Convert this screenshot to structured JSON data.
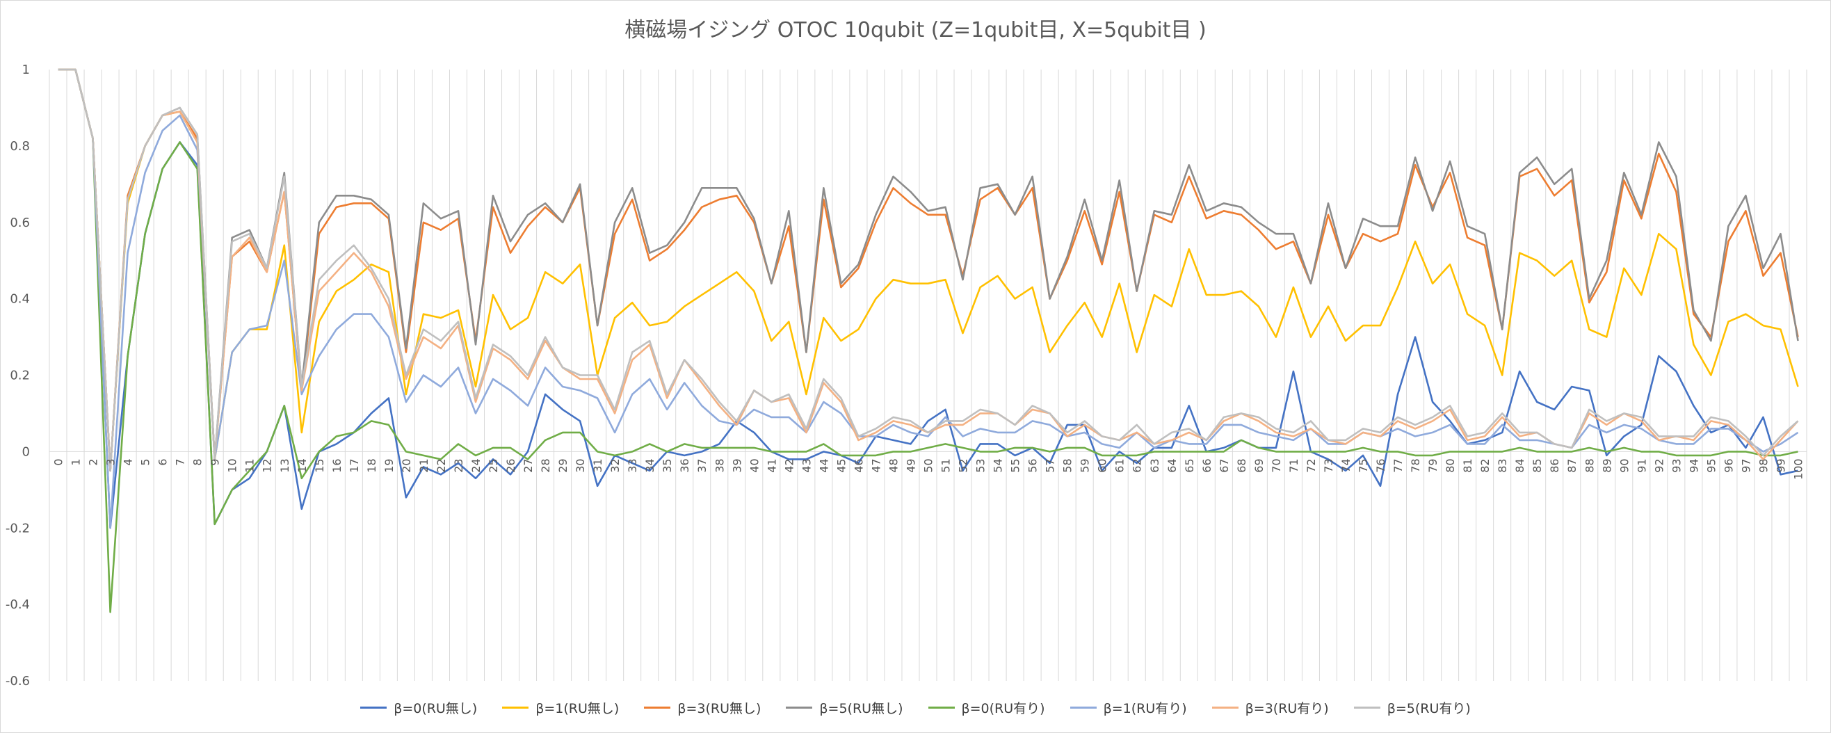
{
  "chart_data": {
    "type": "line",
    "title": "横磁場イジング OTOC 10qubit (Z=1qubit目, X=5qubit目 )",
    "xlabel": "",
    "ylabel": "",
    "ylim": [
      -0.6,
      1
    ],
    "yticks": [
      1,
      0.8,
      0.6,
      0.4,
      0.2,
      0,
      -0.2,
      -0.4,
      -0.6
    ],
    "x": [
      0,
      1,
      2,
      3,
      4,
      5,
      6,
      7,
      8,
      9,
      10,
      11,
      12,
      13,
      14,
      15,
      16,
      17,
      18,
      19,
      20,
      21,
      22,
      23,
      24,
      25,
      26,
      27,
      28,
      29,
      30,
      31,
      32,
      33,
      34,
      35,
      36,
      37,
      38,
      39,
      40,
      41,
      42,
      43,
      44,
      45,
      46,
      47,
      48,
      49,
      50,
      51,
      52,
      53,
      54,
      55,
      56,
      57,
      58,
      59,
      60,
      61,
      62,
      63,
      64,
      65,
      66,
      67,
      68,
      69,
      70,
      71,
      72,
      73,
      74,
      75,
      76,
      77,
      78,
      79,
      80,
      81,
      82,
      83,
      84,
      85,
      86,
      87,
      88,
      89,
      90,
      91,
      92,
      93,
      94,
      95,
      96,
      97,
      98,
      99,
      100
    ],
    "grid": "vertical",
    "legend_position": "bottom",
    "series": [
      {
        "name": "β=0(RU無し)",
        "color": "#4472c4",
        "values": [
          1,
          1,
          0.82,
          -0.2,
          0.25,
          0.57,
          0.74,
          0.81,
          0.75,
          -0.19,
          -0.1,
          -0.07,
          0,
          0.12,
          -0.15,
          0,
          0.02,
          0.05,
          0.1,
          0.14,
          -0.12,
          -0.04,
          -0.06,
          -0.03,
          -0.07,
          -0.02,
          -0.06,
          0,
          0.15,
          0.11,
          0.08,
          -0.09,
          -0.01,
          -0.03,
          -0.05,
          0,
          -0.01,
          0,
          0.02,
          0.08,
          0.05,
          0,
          -0.02,
          -0.02,
          0,
          -0.01,
          -0.03,
          0.04,
          0.03,
          0.02,
          0.08,
          0.11,
          -0.05,
          0.02,
          0.02,
          -0.01,
          0.01,
          -0.03,
          0.07,
          0.07,
          -0.05,
          0,
          -0.03,
          0.01,
          0.01,
          0.12,
          0,
          0.01,
          0.03,
          0.01,
          0.01,
          0.21,
          0,
          -0.02,
          -0.05,
          -0.01,
          -0.09,
          0.15,
          0.3,
          0.13,
          0.08,
          0.02,
          0.03,
          0.05,
          0.21,
          0.13,
          0.11,
          0.17,
          0.16,
          -0.01,
          0.04,
          0.07,
          0.25,
          0.21,
          0.12,
          0.05,
          0.07,
          0.01,
          0.09,
          -0.06,
          -0.05
        ]
      },
      {
        "name": "β=1(RU無し)",
        "color": "#ffc000",
        "values": [
          1,
          1,
          0.82,
          -0.05,
          0.65,
          0.8,
          0.88,
          0.89,
          0.81,
          -0.02,
          0.26,
          0.32,
          0.32,
          0.54,
          0.05,
          0.34,
          0.42,
          0.45,
          0.49,
          0.47,
          0.15,
          0.36,
          0.35,
          0.37,
          0.17,
          0.41,
          0.32,
          0.35,
          0.47,
          0.44,
          0.49,
          0.2,
          0.35,
          0.39,
          0.33,
          0.34,
          0.38,
          0.41,
          0.44,
          0.47,
          0.42,
          0.29,
          0.34,
          0.15,
          0.35,
          0.29,
          0.32,
          0.4,
          0.45,
          0.44,
          0.44,
          0.45,
          0.31,
          0.43,
          0.46,
          0.4,
          0.43,
          0.26,
          0.33,
          0.39,
          0.3,
          0.44,
          0.26,
          0.41,
          0.38,
          0.53,
          0.41,
          0.41,
          0.42,
          0.38,
          0.3,
          0.43,
          0.3,
          0.38,
          0.29,
          0.33,
          0.33,
          0.43,
          0.55,
          0.44,
          0.49,
          0.36,
          0.33,
          0.2,
          0.52,
          0.5,
          0.46,
          0.5,
          0.32,
          0.3,
          0.48,
          0.41,
          0.57,
          0.53,
          0.28,
          0.2,
          0.34,
          0.36,
          0.33,
          0.32,
          0.17
        ]
      },
      {
        "name": "β=3(RU無し)",
        "color": "#ed7d31",
        "values": [
          1,
          1,
          0.82,
          -0.05,
          0.67,
          0.8,
          0.88,
          0.89,
          0.82,
          -0.02,
          0.51,
          0.55,
          0.47,
          0.68,
          0.16,
          0.57,
          0.64,
          0.65,
          0.65,
          0.61,
          0.26,
          0.6,
          0.58,
          0.61,
          0.29,
          0.64,
          0.52,
          0.59,
          0.64,
          0.6,
          0.69,
          0.33,
          0.57,
          0.66,
          0.5,
          0.53,
          0.58,
          0.64,
          0.66,
          0.67,
          0.6,
          0.44,
          0.59,
          0.26,
          0.66,
          0.43,
          0.48,
          0.6,
          0.69,
          0.65,
          0.62,
          0.62,
          0.46,
          0.66,
          0.69,
          0.62,
          0.69,
          0.4,
          0.5,
          0.63,
          0.49,
          0.68,
          0.42,
          0.62,
          0.6,
          0.72,
          0.61,
          0.63,
          0.62,
          0.58,
          0.53,
          0.55,
          0.44,
          0.62,
          0.48,
          0.57,
          0.55,
          0.57,
          0.75,
          0.64,
          0.73,
          0.56,
          0.54,
          0.32,
          0.72,
          0.74,
          0.67,
          0.71,
          0.39,
          0.47,
          0.71,
          0.61,
          0.78,
          0.68,
          0.36,
          0.3,
          0.55,
          0.63,
          0.46,
          0.52,
          0.3
        ]
      },
      {
        "name": "β=5(RU無し)",
        "color": "#8c8c8c",
        "values": [
          1,
          1,
          0.82,
          -0.05,
          0.66,
          0.8,
          0.88,
          0.9,
          0.83,
          -0.02,
          0.56,
          0.58,
          0.48,
          0.73,
          0.17,
          0.6,
          0.67,
          0.67,
          0.66,
          0.62,
          0.27,
          0.65,
          0.61,
          0.63,
          0.28,
          0.67,
          0.55,
          0.62,
          0.65,
          0.6,
          0.7,
          0.33,
          0.6,
          0.69,
          0.52,
          0.54,
          0.6,
          0.69,
          0.69,
          0.69,
          0.61,
          0.44,
          0.63,
          0.26,
          0.69,
          0.44,
          0.49,
          0.62,
          0.72,
          0.68,
          0.63,
          0.64,
          0.45,
          0.69,
          0.7,
          0.62,
          0.72,
          0.4,
          0.51,
          0.66,
          0.5,
          0.71,
          0.42,
          0.63,
          0.62,
          0.75,
          0.63,
          0.65,
          0.64,
          0.6,
          0.57,
          0.57,
          0.44,
          0.65,
          0.48,
          0.61,
          0.59,
          0.59,
          0.77,
          0.63,
          0.76,
          0.59,
          0.57,
          0.32,
          0.73,
          0.77,
          0.7,
          0.74,
          0.4,
          0.5,
          0.73,
          0.62,
          0.81,
          0.72,
          0.37,
          0.29,
          0.59,
          0.67,
          0.48,
          0.57,
          0.29
        ]
      },
      {
        "name": "β=0(RU有り)",
        "color": "#70ad47",
        "values": [
          1,
          1,
          0.82,
          -0.42,
          0.25,
          0.57,
          0.74,
          0.81,
          0.74,
          -0.19,
          -0.1,
          -0.05,
          0,
          0.12,
          -0.07,
          0,
          0.04,
          0.05,
          0.08,
          0.07,
          0,
          -0.01,
          -0.02,
          0.02,
          -0.01,
          0.01,
          0.01,
          -0.02,
          0.03,
          0.05,
          0.05,
          0,
          -0.01,
          0,
          0.02,
          0,
          0.02,
          0.01,
          0.01,
          0.01,
          0.01,
          0,
          0,
          0,
          0.02,
          -0.01,
          -0.01,
          -0.01,
          0,
          0,
          0.01,
          0.02,
          0.01,
          0,
          0,
          0.01,
          0.01,
          0,
          0.01,
          0.01,
          -0.01,
          -0.01,
          -0.01,
          0,
          0,
          0,
          0,
          0,
          0.03,
          0.01,
          0,
          0,
          0,
          0,
          0,
          0.01,
          0,
          0,
          -0.01,
          -0.01,
          0,
          0,
          0,
          0,
          0.01,
          0,
          0,
          0,
          0.01,
          0,
          0.01,
          0,
          0,
          -0.01,
          -0.01,
          -0.01,
          0,
          0,
          -0.01,
          -0.01,
          0
        ]
      },
      {
        "name": "β=1(RU有り)",
        "color": "#8faadc",
        "values": [
          1,
          1,
          0.82,
          -0.2,
          0.52,
          0.73,
          0.84,
          0.88,
          0.79,
          -0.02,
          0.26,
          0.32,
          0.33,
          0.5,
          0.15,
          0.25,
          0.32,
          0.36,
          0.36,
          0.3,
          0.13,
          0.2,
          0.17,
          0.22,
          0.1,
          0.19,
          0.16,
          0.12,
          0.22,
          0.17,
          0.16,
          0.14,
          0.05,
          0.15,
          0.19,
          0.11,
          0.18,
          0.12,
          0.08,
          0.07,
          0.11,
          0.09,
          0.09,
          0.05,
          0.13,
          0.1,
          0.04,
          0.04,
          0.07,
          0.05,
          0.04,
          0.09,
          0.04,
          0.06,
          0.05,
          0.05,
          0.08,
          0.07,
          0.04,
          0.05,
          0.02,
          0.01,
          0.05,
          0.01,
          0.03,
          0.02,
          0.02,
          0.07,
          0.07,
          0.05,
          0.04,
          0.03,
          0.06,
          0.02,
          0.02,
          0.05,
          0.04,
          0.06,
          0.04,
          0.05,
          0.07,
          0.02,
          0.02,
          0.07,
          0.03,
          0.03,
          0.02,
          0.01,
          0.07,
          0.05,
          0.07,
          0.06,
          0.03,
          0.02,
          0.02,
          0.06,
          0.06,
          0.03,
          0,
          0.02,
          0.05
        ]
      },
      {
        "name": "β=3(RU有り)",
        "color": "#f4b183",
        "values": [
          1,
          1,
          0.82,
          -0.05,
          0.66,
          0.8,
          0.88,
          0.89,
          0.81,
          -0.02,
          0.51,
          0.56,
          0.47,
          0.68,
          0.16,
          0.42,
          0.47,
          0.52,
          0.47,
          0.38,
          0.19,
          0.3,
          0.27,
          0.33,
          0.13,
          0.27,
          0.24,
          0.19,
          0.29,
          0.22,
          0.19,
          0.19,
          0.1,
          0.24,
          0.28,
          0.14,
          0.24,
          0.18,
          0.12,
          0.07,
          0.16,
          0.13,
          0.14,
          0.05,
          0.18,
          0.13,
          0.03,
          0.05,
          0.08,
          0.07,
          0.05,
          0.07,
          0.07,
          0.1,
          0.1,
          0.07,
          0.11,
          0.1,
          0.04,
          0.07,
          0.04,
          0.03,
          0.05,
          0.02,
          0.03,
          0.05,
          0.03,
          0.08,
          0.1,
          0.08,
          0.05,
          0.04,
          0.06,
          0.03,
          0.02,
          0.05,
          0.04,
          0.08,
          0.06,
          0.08,
          0.11,
          0.03,
          0.04,
          0.09,
          0.04,
          0.05,
          0.02,
          0.01,
          0.1,
          0.07,
          0.1,
          0.08,
          0.03,
          0.04,
          0.03,
          0.08,
          0.07,
          0.03,
          -0.02,
          0.03,
          0.08
        ]
      },
      {
        "name": "β=5(RU有り)",
        "color": "#bfbfbf",
        "values": [
          1,
          1,
          0.82,
          -0.05,
          0.66,
          0.8,
          0.88,
          0.9,
          0.83,
          -0.02,
          0.55,
          0.57,
          0.48,
          0.72,
          0.17,
          0.45,
          0.5,
          0.54,
          0.48,
          0.4,
          0.2,
          0.32,
          0.29,
          0.34,
          0.14,
          0.28,
          0.25,
          0.2,
          0.3,
          0.22,
          0.2,
          0.2,
          0.11,
          0.26,
          0.29,
          0.15,
          0.24,
          0.19,
          0.13,
          0.08,
          0.16,
          0.13,
          0.15,
          0.06,
          0.19,
          0.14,
          0.04,
          0.06,
          0.09,
          0.08,
          0.05,
          0.08,
          0.08,
          0.11,
          0.1,
          0.07,
          0.12,
          0.1,
          0.05,
          0.08,
          0.04,
          0.03,
          0.07,
          0.02,
          0.05,
          0.06,
          0.03,
          0.09,
          0.1,
          0.09,
          0.06,
          0.05,
          0.08,
          0.03,
          0.03,
          0.06,
          0.05,
          0.09,
          0.07,
          0.09,
          0.12,
          0.04,
          0.05,
          0.1,
          0.05,
          0.05,
          0.02,
          0.01,
          0.11,
          0.08,
          0.1,
          0.09,
          0.04,
          0.04,
          0.04,
          0.09,
          0.08,
          0.04,
          -0.01,
          0.04,
          0.08
        ]
      }
    ]
  }
}
